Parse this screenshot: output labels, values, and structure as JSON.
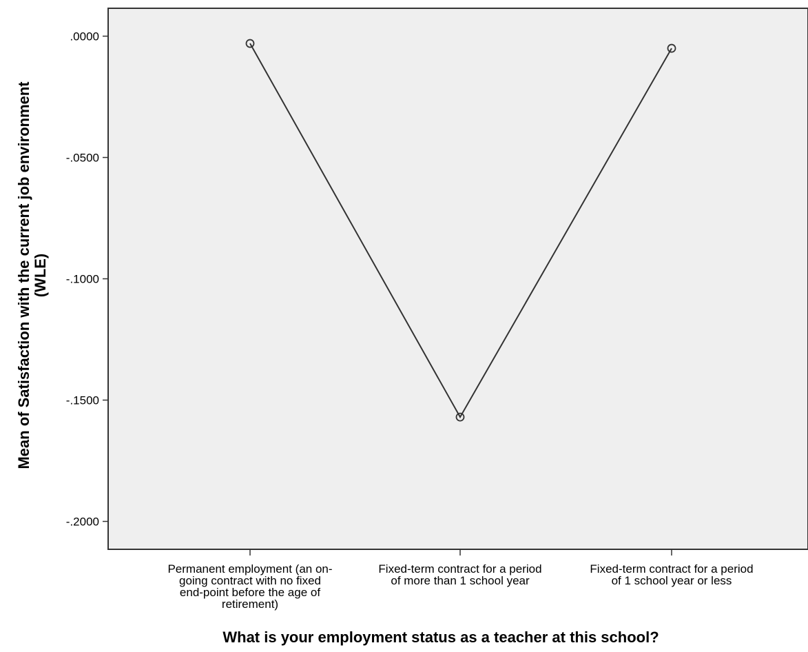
{
  "chart_data": {
    "type": "line",
    "categories": [
      [
        "Permanent employment (an on-",
        "going contract with no fixed",
        "end-point before the age of",
        "retirement)"
      ],
      [
        "Fixed-term contract for a period",
        "of more than 1 school year"
      ],
      [
        "Fixed-term contract for a period",
        "of 1 school year or less"
      ]
    ],
    "values": [
      -0.003,
      -0.157,
      -0.005
    ],
    "xlabel": "What is your employment status as a teacher at this school?",
    "ylabel": [
      "Mean of Satisfaction with the current job environment",
      "(WLE)"
    ],
    "yticks": [
      0.0,
      -0.05,
      -0.1,
      -0.15,
      -0.2
    ],
    "ytick_labels": [
      ".0000",
      "-.0500",
      "-.1000",
      "-.1500",
      "-.2000"
    ],
    "ylim": [
      -0.2115,
      0.0115
    ],
    "grid": false,
    "marker": "open-circle",
    "colors": {
      "plot_background": "#efefef",
      "line": "#333333",
      "axis": "#333333"
    }
  }
}
